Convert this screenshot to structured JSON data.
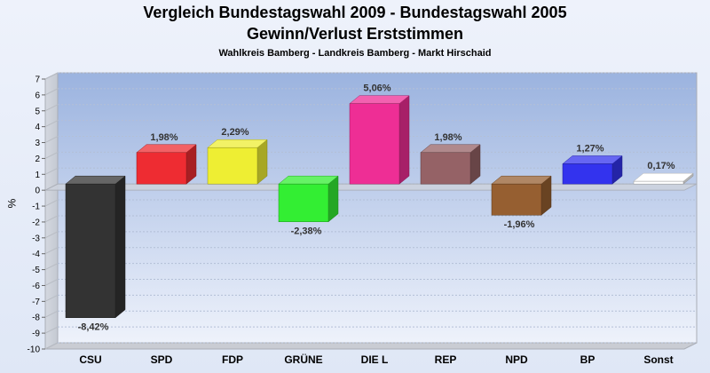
{
  "chart_data": {
    "type": "bar",
    "title": "Vergleich Bundestagswahl 2009 - Bundestagswahl 2005",
    "subtitle": "Gewinn/Verlust Erststimmen",
    "subtitle2": "Wahlkreis Bamberg - Landkreis Bamberg - Markt Hirschaid",
    "ylabel": "%",
    "xlabel": "",
    "ylim": [
      -10,
      7
    ],
    "yticks": [
      7,
      6,
      5,
      4,
      3,
      2,
      1,
      0,
      -1,
      -2,
      -3,
      -4,
      -5,
      -6,
      -7,
      -8,
      -9,
      -10
    ],
    "grid": true,
    "categories": [
      "CSU",
      "SPD",
      "FDP",
      "GRÜNE",
      "DIE L",
      "REP",
      "NPD",
      "BP",
      "Sonst"
    ],
    "values": [
      -8.42,
      1.98,
      2.29,
      -2.38,
      5.06,
      1.98,
      -1.96,
      1.27,
      0.17
    ],
    "labels": [
      "-8,42%",
      "1,98%",
      "2,29%",
      "-2,38%",
      "5,06%",
      "1,98%",
      "-1,96%",
      "1,27%",
      "0,17%"
    ],
    "colors": [
      "#333333",
      "#ee2c32",
      "#eeee33",
      "#33ee33",
      "#ee2e95",
      "#956266",
      "#965f31",
      "#3333ee",
      "#ffffff"
    ]
  }
}
